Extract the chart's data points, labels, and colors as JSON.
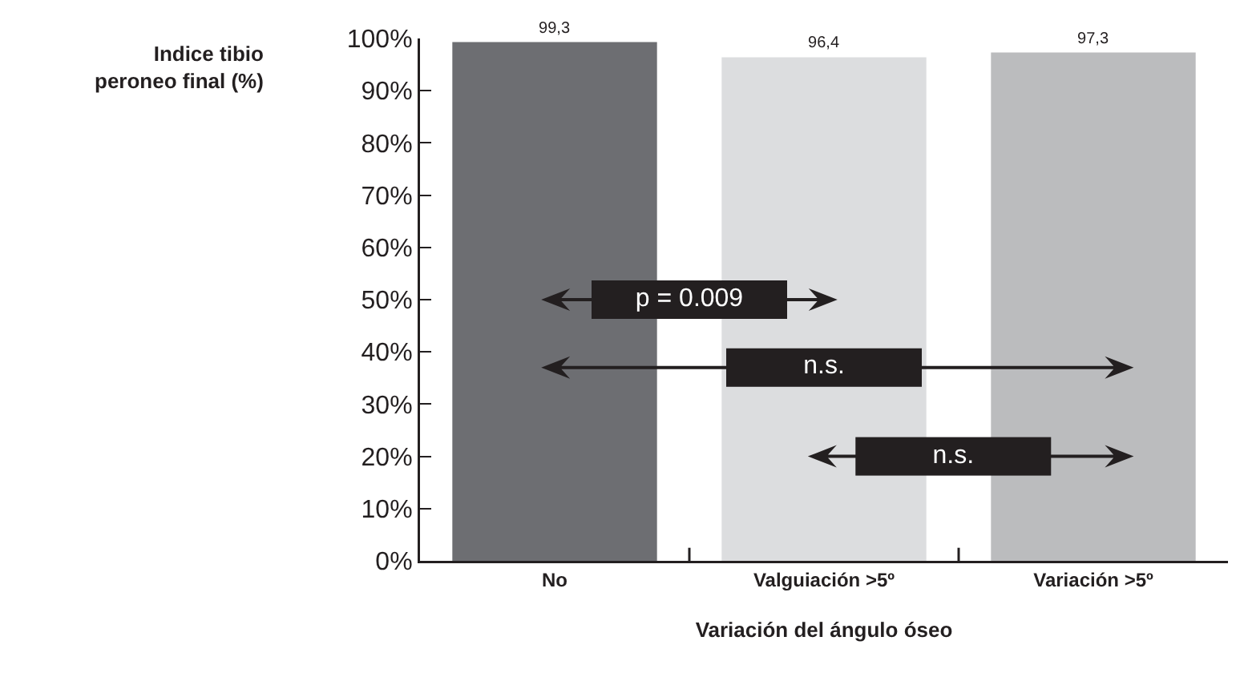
{
  "chart_data": {
    "type": "bar",
    "xlabel": "Variación del ángulo óseo",
    "ylabel": "Indice tibio peroneo final (%)",
    "categories": [
      "No",
      "Valguiación >5º",
      "Variación >5º"
    ],
    "values": [
      99.3,
      96.4,
      97.3
    ],
    "colors": [
      "#6d6e72",
      "#dcdddf",
      "#bbbcbe"
    ],
    "value_labels": [
      "99,3",
      "96,4",
      "97,3"
    ],
    "ylim": [
      0,
      100
    ],
    "yticks": [
      {
        "value": 0,
        "label": "0%"
      },
      {
        "value": 10,
        "label": "10%"
      },
      {
        "value": 20,
        "label": "20%"
      },
      {
        "value": 30,
        "label": "30%"
      },
      {
        "value": 40,
        "label": "40%"
      },
      {
        "value": 50,
        "label": "50%"
      },
      {
        "value": 60,
        "label": "60%"
      },
      {
        "value": 70,
        "label": "70%"
      },
      {
        "value": 80,
        "label": "80%"
      },
      {
        "value": 90,
        "label": "90%"
      },
      {
        "value": 100,
        "label": "100%"
      }
    ],
    "annotations": [
      "p = 0.009",
      "n.s.",
      "n.s."
    ],
    "grid": false
  }
}
